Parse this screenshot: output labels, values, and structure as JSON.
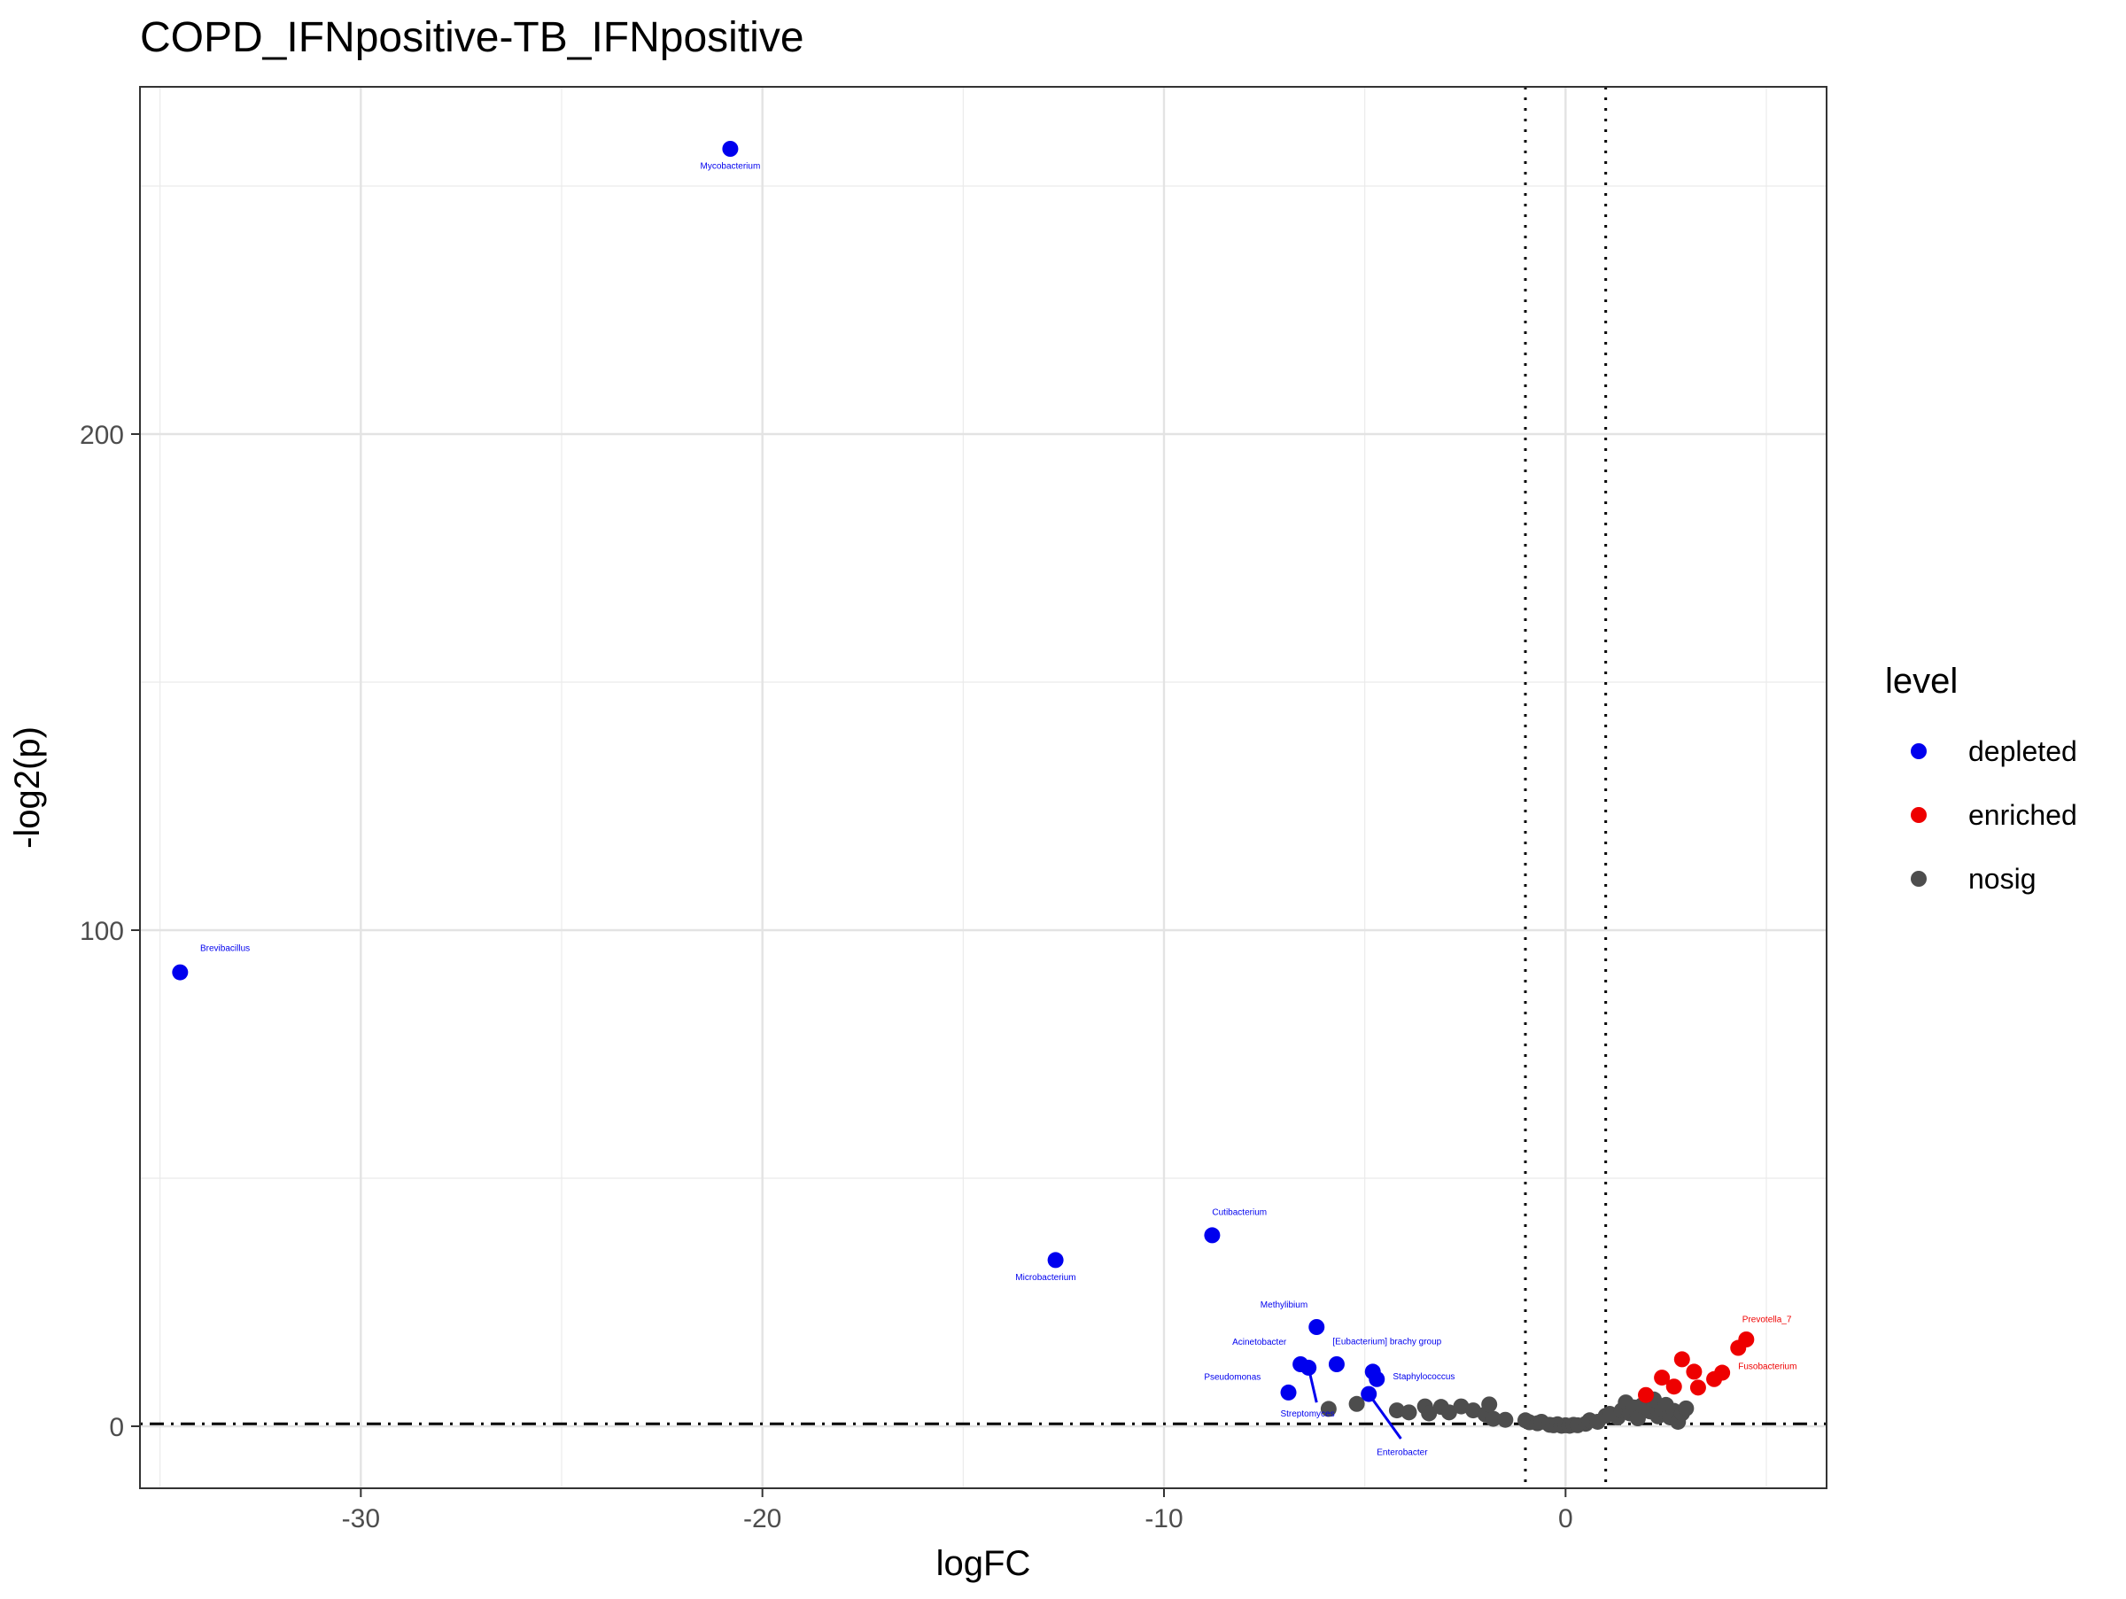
{
  "chart_data": {
    "type": "scatter",
    "title": "COPD_IFNpositive-TB_IFNpositive",
    "xlabel": "logFC",
    "ylabel": "-log2(p)",
    "xlim": [
      -35.5,
      6.5
    ],
    "ylim": [
      -12.5,
      270
    ],
    "x_ticks": [
      -30,
      -20,
      -10,
      0
    ],
    "x_tick_labels": [
      "-30",
      "-20",
      "-10",
      "0"
    ],
    "x_minor_ticks": [
      -35,
      -25,
      -15,
      -5,
      5
    ],
    "y_ticks": [
      0,
      100,
      200
    ],
    "y_tick_labels": [
      "0",
      "100",
      "200"
    ],
    "y_minor_ticks": [
      50,
      150,
      250
    ],
    "grid": true,
    "legend_position": "right",
    "legend": {
      "title": "level",
      "items": [
        {
          "key": "depleted",
          "label": "depleted",
          "color": "#0000EE"
        },
        {
          "key": "enriched",
          "label": "enriched",
          "color": "#EE0000"
        },
        {
          "key": "nosig",
          "label": "nosig",
          "color": "#4D4D4D"
        }
      ]
    },
    "reference_lines": {
      "vertical_dotted": [
        -1,
        1
      ],
      "horizontal_dotdash": 0.5
    },
    "series": [
      {
        "name": "depleted",
        "color": "#0000EE",
        "points": [
          {
            "x": -20.8,
            "y": 257.5,
            "label": "Mycobacterium"
          },
          {
            "x": -34.5,
            "y": 91.5,
            "label": "Brevibacillus"
          },
          {
            "x": -8.8,
            "y": 38.5,
            "label": "Cutibacterium"
          },
          {
            "x": -12.7,
            "y": 33.5,
            "label": "Microbacterium"
          },
          {
            "x": -6.2,
            "y": 20.0,
            "label": "Methylibium"
          },
          {
            "x": -5.7,
            "y": 12.5,
            "label": "[Eubacterium] brachy group"
          },
          {
            "x": -6.6,
            "y": 12.5,
            "label": "Acinetobacter"
          },
          {
            "x": -6.4,
            "y": 11.8,
            "label": "Streptomyces"
          },
          {
            "x": -6.9,
            "y": 6.8,
            "label": "Pseudomonas"
          },
          {
            "x": -4.8,
            "y": 11.0,
            "label": "Staphylococcus"
          },
          {
            "x": -4.7,
            "y": 9.5,
            "label": ""
          },
          {
            "x": -4.9,
            "y": 6.5,
            "label": "Enterobacter"
          }
        ]
      },
      {
        "name": "enriched",
        "color": "#EE0000",
        "points": [
          {
            "x": 4.5,
            "y": 17.5,
            "label": "Prevotella_7"
          },
          {
            "x": 4.3,
            "y": 15.8,
            "label": ""
          },
          {
            "x": 3.9,
            "y": 10.8,
            "label": "Fusobacterium"
          },
          {
            "x": 3.7,
            "y": 9.5,
            "label": ""
          },
          {
            "x": 2.9,
            "y": 13.5,
            "label": ""
          },
          {
            "x": 3.2,
            "y": 11.0,
            "label": ""
          },
          {
            "x": 2.4,
            "y": 9.8,
            "label": ""
          },
          {
            "x": 2.7,
            "y": 8.0,
            "label": ""
          },
          {
            "x": 3.3,
            "y": 7.8,
            "label": ""
          },
          {
            "x": 2.0,
            "y": 6.3,
            "label": ""
          }
        ]
      },
      {
        "name": "nosig",
        "color": "#4D4D4D",
        "points": [
          {
            "x": -5.9,
            "y": 3.5
          },
          {
            "x": -5.2,
            "y": 4.5
          },
          {
            "x": -4.2,
            "y": 3.2
          },
          {
            "x": -3.9,
            "y": 2.8
          },
          {
            "x": -3.5,
            "y": 4.0
          },
          {
            "x": -3.4,
            "y": 2.6
          },
          {
            "x": -3.1,
            "y": 3.9
          },
          {
            "x": -2.9,
            "y": 2.8
          },
          {
            "x": -2.6,
            "y": 4.0
          },
          {
            "x": -2.3,
            "y": 3.2
          },
          {
            "x": -2.0,
            "y": 2.4
          },
          {
            "x": -1.9,
            "y": 4.4
          },
          {
            "x": -1.8,
            "y": 1.5
          },
          {
            "x": -1.5,
            "y": 1.3
          },
          {
            "x": -1.0,
            "y": 1.2
          },
          {
            "x": -0.9,
            "y": 0.8
          },
          {
            "x": -0.7,
            "y": 0.6
          },
          {
            "x": -0.6,
            "y": 0.9
          },
          {
            "x": -0.4,
            "y": 0.3
          },
          {
            "x": -0.3,
            "y": 0.2
          },
          {
            "x": -0.2,
            "y": 0.4
          },
          {
            "x": -0.1,
            "y": 0.1
          },
          {
            "x": 0.0,
            "y": 0.2
          },
          {
            "x": 0.1,
            "y": 0.1
          },
          {
            "x": 0.2,
            "y": 0.3
          },
          {
            "x": 0.3,
            "y": 0.2
          },
          {
            "x": 0.5,
            "y": 0.5
          },
          {
            "x": 0.6,
            "y": 1.2
          },
          {
            "x": 0.8,
            "y": 0.9
          },
          {
            "x": 1.0,
            "y": 2.1
          },
          {
            "x": 1.1,
            "y": 2.5
          },
          {
            "x": 1.3,
            "y": 1.8
          },
          {
            "x": 1.4,
            "y": 3.2
          },
          {
            "x": 1.5,
            "y": 4.8
          },
          {
            "x": 1.6,
            "y": 2.6
          },
          {
            "x": 1.7,
            "y": 3.8
          },
          {
            "x": 1.8,
            "y": 1.6
          },
          {
            "x": 1.9,
            "y": 4.2
          },
          {
            "x": 2.1,
            "y": 3.0
          },
          {
            "x": 2.2,
            "y": 5.4
          },
          {
            "x": 2.3,
            "y": 2.0
          },
          {
            "x": 2.4,
            "y": 3.4
          },
          {
            "x": 2.5,
            "y": 4.3
          },
          {
            "x": 2.6,
            "y": 1.8
          },
          {
            "x": 2.7,
            "y": 3.1
          },
          {
            "x": 2.8,
            "y": 0.9
          },
          {
            "x": 2.9,
            "y": 2.6
          },
          {
            "x": 3.0,
            "y": 3.6
          }
        ]
      }
    ],
    "leader_lines": [
      {
        "from": [
          -6.4,
          11.8
        ],
        "to": [
          -6.2,
          4.8
        ]
      },
      {
        "from": [
          -4.9,
          6.5
        ],
        "to": [
          -4.1,
          -2.5
        ]
      }
    ],
    "annotations": [
      {
        "text": "Mycobacterium",
        "x": -20.8,
        "y": 253.5,
        "color": "#0000EE",
        "anchor": "middle"
      },
      {
        "text": "Brevibacillus",
        "x": -34.0,
        "y": 95.8,
        "color": "#0000EE",
        "anchor": "start"
      },
      {
        "text": "Cutibacterium",
        "x": -8.8,
        "y": 42.6,
        "color": "#0000EE",
        "anchor": "start"
      },
      {
        "text": "Microbacterium",
        "x": -13.7,
        "y": 29.5,
        "color": "#0000EE",
        "anchor": "start"
      },
      {
        "text": "Methylibium",
        "x": -7.6,
        "y": 23.9,
        "color": "#0000EE",
        "anchor": "start"
      },
      {
        "text": "Acinetobacter",
        "x": -8.3,
        "y": 16.4,
        "color": "#0000EE",
        "anchor": "start"
      },
      {
        "text": "[Eubacterium] brachy group",
        "x": -5.8,
        "y": 16.5,
        "color": "#0000EE",
        "anchor": "start"
      },
      {
        "text": "Pseudomonas",
        "x": -9.0,
        "y": 9.4,
        "color": "#0000EE",
        "anchor": "start"
      },
      {
        "text": "Staphylococcus",
        "x": -4.3,
        "y": 9.5,
        "color": "#0000EE",
        "anchor": "start"
      },
      {
        "text": "Streptomyces",
        "x": -7.1,
        "y": 2.0,
        "color": "#0000EE",
        "anchor": "start"
      },
      {
        "text": "Enterobacter",
        "x": -4.7,
        "y": -5.8,
        "color": "#0000EE",
        "anchor": "start"
      },
      {
        "text": "Prevotella_7",
        "x": 4.4,
        "y": 21.0,
        "color": "#EE0000",
        "anchor": "start"
      },
      {
        "text": "Fusobacterium",
        "x": 4.3,
        "y": 11.5,
        "color": "#EE0000",
        "anchor": "start"
      }
    ]
  }
}
